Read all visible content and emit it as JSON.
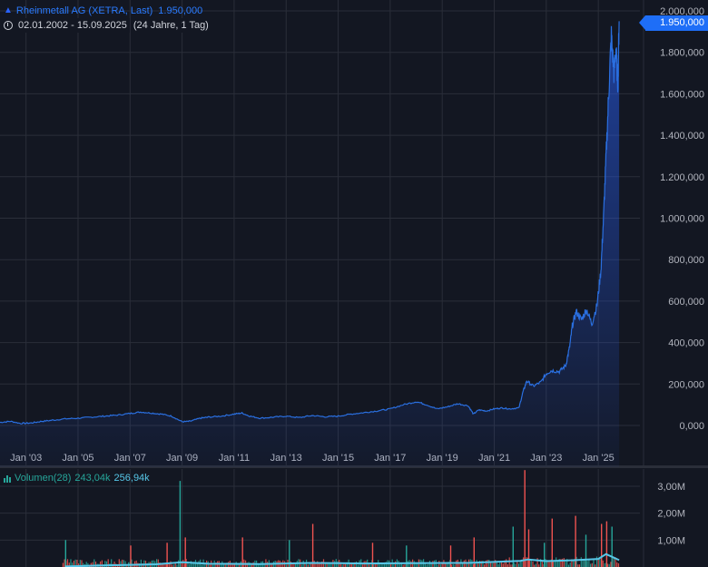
{
  "legend": {
    "symbol_icon": "mountain-chart-icon",
    "instrument": "Rheinmetall AG (XETRA, Last)",
    "last_value": "1.950,000",
    "date_range": "02.01.2002 - 15.09.2025",
    "duration": "(24 Jahre, 1 Tag)"
  },
  "price_label": "1.950,000",
  "volume_legend": {
    "label": "Volumen(28)",
    "value1": "243,04k",
    "value2": "256,94k"
  },
  "colors": {
    "background": "#131722",
    "price_line": "#2a6fe0",
    "volume_up": "#26a69a",
    "volume_down": "#ef5350",
    "volume_ma": "#57c7e8",
    "grid": "#2a2e39"
  },
  "chart_data": [
    {
      "type": "area",
      "title": "Rheinmetall AG (XETRA, Last)",
      "xlabel": "",
      "ylabel": "",
      "x_ticks": [
        "Jan '03",
        "Jan '05",
        "Jan '07",
        "Jan '09",
        "Jan '11",
        "Jan '13",
        "Jan '15",
        "Jan '17",
        "Jan '19",
        "Jan '21",
        "Jan '23",
        "Jan '25"
      ],
      "y_ticks": [
        "0,000",
        "200,000",
        "400,000",
        "600,000",
        "800,000",
        "1.000,000",
        "1.200,000",
        "1.400,000",
        "1.600,000",
        "1.800,000",
        "2.000,000"
      ],
      "xlim": [
        2002.0,
        2026.6
      ],
      "ylim": [
        -50,
        2000
      ],
      "grid": true,
      "series": [
        {
          "name": "Rheinmetall AG (XETRA, Last)",
          "points": [
            [
              2002.0,
              15
            ],
            [
              2002.4,
              20
            ],
            [
              2002.8,
              10
            ],
            [
              2003.2,
              12
            ],
            [
              2003.6,
              20
            ],
            [
              2004.0,
              25
            ],
            [
              2004.5,
              32
            ],
            [
              2005.0,
              35
            ],
            [
              2005.5,
              40
            ],
            [
              2006.0,
              45
            ],
            [
              2006.5,
              50
            ],
            [
              2007.0,
              58
            ],
            [
              2007.4,
              65
            ],
            [
              2007.8,
              60
            ],
            [
              2008.2,
              55
            ],
            [
              2008.6,
              45
            ],
            [
              2009.0,
              18
            ],
            [
              2009.3,
              20
            ],
            [
              2009.7,
              35
            ],
            [
              2010.0,
              40
            ],
            [
              2010.5,
              45
            ],
            [
              2011.0,
              55
            ],
            [
              2011.3,
              60
            ],
            [
              2011.6,
              45
            ],
            [
              2012.0,
              35
            ],
            [
              2012.5,
              40
            ],
            [
              2013.0,
              45
            ],
            [
              2013.5,
              38
            ],
            [
              2014.0,
              48
            ],
            [
              2014.5,
              42
            ],
            [
              2015.0,
              45
            ],
            [
              2015.5,
              55
            ],
            [
              2016.0,
              62
            ],
            [
              2016.5,
              70
            ],
            [
              2017.0,
              80
            ],
            [
              2017.5,
              100
            ],
            [
              2018.0,
              115
            ],
            [
              2018.4,
              100
            ],
            [
              2018.8,
              80
            ],
            [
              2019.2,
              90
            ],
            [
              2019.6,
              105
            ],
            [
              2020.0,
              95
            ],
            [
              2020.2,
              55
            ],
            [
              2020.4,
              75
            ],
            [
              2020.7,
              70
            ],
            [
              2021.0,
              80
            ],
            [
              2021.3,
              85
            ],
            [
              2021.6,
              80
            ],
            [
              2021.95,
              85
            ],
            [
              2022.1,
              160
            ],
            [
              2022.25,
              215
            ],
            [
              2022.5,
              190
            ],
            [
              2022.8,
              210
            ],
            [
              2023.0,
              250
            ],
            [
              2023.2,
              265
            ],
            [
              2023.5,
              260
            ],
            [
              2023.75,
              290
            ],
            [
              2023.9,
              380
            ],
            [
              2024.0,
              480
            ],
            [
              2024.15,
              550
            ],
            [
              2024.35,
              510
            ],
            [
              2024.55,
              560
            ],
            [
              2024.75,
              490
            ],
            [
              2024.95,
              580
            ],
            [
              2025.1,
              750
            ],
            [
              2025.2,
              1000
            ],
            [
              2025.3,
              1300
            ],
            [
              2025.4,
              1600
            ],
            [
              2025.5,
              1880
            ],
            [
              2025.6,
              1700
            ],
            [
              2025.68,
              1820
            ],
            [
              2025.75,
              1650
            ],
            [
              2025.8,
              1950
            ]
          ]
        }
      ]
    },
    {
      "type": "bar",
      "title": "Volumen(28)",
      "y_ticks": [
        "1,00M",
        "2,00M",
        "3,00M"
      ],
      "ylim": [
        0,
        3700000
      ],
      "grid": true,
      "series": [
        {
          "name": "Volumen",
          "spikes": [
            [
              2004.5,
              1000000
            ],
            [
              2007.0,
              800000
            ],
            [
              2008.4,
              900000
            ],
            [
              2008.9,
              3200000
            ],
            [
              2009.1,
              1100000
            ],
            [
              2011.3,
              1100000
            ],
            [
              2013.1,
              1000000
            ],
            [
              2014.0,
              1600000
            ],
            [
              2016.3,
              900000
            ],
            [
              2017.6,
              800000
            ],
            [
              2019.3,
              800000
            ],
            [
              2020.2,
              1100000
            ],
            [
              2021.7,
              1500000
            ],
            [
              2022.15,
              3600000
            ],
            [
              2022.3,
              1400000
            ],
            [
              2022.9,
              900000
            ],
            [
              2023.2,
              1800000
            ],
            [
              2024.1,
              1900000
            ],
            [
              2024.5,
              1200000
            ],
            [
              2025.1,
              1600000
            ],
            [
              2025.3,
              1700000
            ],
            [
              2025.5,
              1500000
            ]
          ]
        },
        {
          "name": "Volumen MA(28)",
          "points": [
            [
              2004.5,
              20000
            ],
            [
              2006.0,
              60000
            ],
            [
              2008.0,
              100000
            ],
            [
              2009.0,
              180000
            ],
            [
              2010.0,
              120000
            ],
            [
              2012.0,
              110000
            ],
            [
              2014.0,
              150000
            ],
            [
              2016.0,
              130000
            ],
            [
              2018.0,
              140000
            ],
            [
              2020.0,
              150000
            ],
            [
              2022.0,
              230000
            ],
            [
              2022.3,
              280000
            ],
            [
              2023.0,
              220000
            ],
            [
              2024.0,
              250000
            ],
            [
              2025.0,
              300000
            ],
            [
              2025.3,
              480000
            ],
            [
              2025.8,
              257000
            ]
          ]
        }
      ]
    }
  ]
}
